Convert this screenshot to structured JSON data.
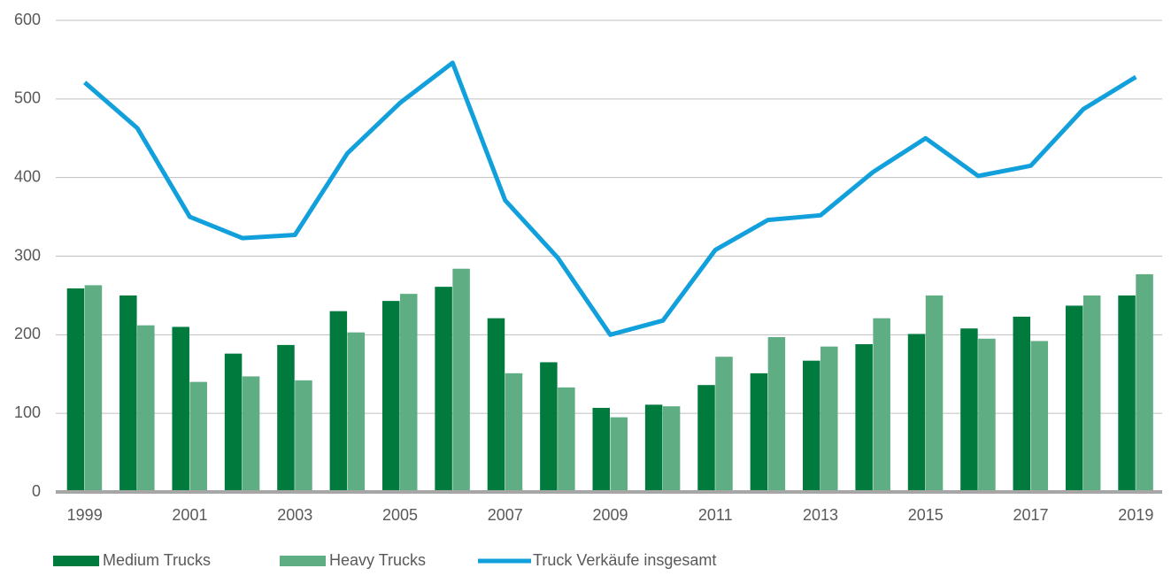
{
  "chart_data": {
    "type": "bar",
    "categories": [
      "1999",
      null,
      "2001",
      null,
      "2003",
      null,
      "2005",
      null,
      "2007",
      null,
      "2009",
      null,
      "2011",
      null,
      "2013",
      null,
      "2015",
      null,
      "2017",
      null,
      "2019"
    ],
    "series": [
      {
        "name": "Medium Trucks",
        "color": "#007a3d",
        "type": "bar",
        "values": [
          259,
          250,
          210,
          176,
          187,
          230,
          243,
          261,
          221,
          165,
          107,
          111,
          136,
          151,
          167,
          188,
          201,
          208,
          223,
          237,
          250
        ]
      },
      {
        "name": "Heavy Trucks",
        "color": "#5fad82",
        "type": "bar",
        "values": [
          263,
          212,
          140,
          147,
          142,
          203,
          252,
          284,
          151,
          133,
          95,
          109,
          172,
          197,
          185,
          221,
          250,
          195,
          192,
          250,
          277
        ]
      },
      {
        "name": "Truck Verkäufe insgesamt",
        "color": "#12a0dc",
        "type": "line",
        "values": [
          521,
          463,
          350,
          323,
          327,
          431,
          495,
          546,
          371,
          298,
          200,
          218,
          308,
          346,
          352,
          407,
          450,
          402,
          415,
          487,
          528
        ]
      }
    ],
    "ylim": [
      0,
      600
    ],
    "yticks": [
      0,
      100,
      200,
      300,
      400,
      500,
      600
    ],
    "grid": true,
    "legend": "bottom"
  }
}
